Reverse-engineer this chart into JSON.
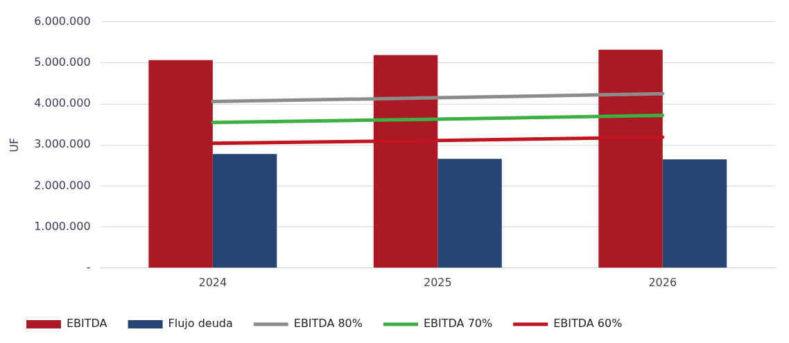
{
  "chart_data": {
    "type": "bar",
    "ylabel": "UF",
    "categories": [
      "2024",
      "2025",
      "2026"
    ],
    "series": [
      {
        "name": "EBITDA",
        "color": "#ab1a24",
        "values": [
          5070000,
          5190000,
          5320000
        ]
      },
      {
        "name": "Flujo deuda",
        "color": "#264573",
        "values": [
          2780000,
          2660000,
          2650000
        ]
      },
      {
        "name": "EBITDA 80%",
        "type": "line",
        "color": "#8c8c8c",
        "values": [
          4060000,
          4150000,
          4250000
        ]
      },
      {
        "name": "EBITDA 70%",
        "type": "line",
        "color": "#3cb043",
        "values": [
          3550000,
          3630000,
          3720000
        ]
      },
      {
        "name": "EBITDA 60%",
        "type": "line",
        "color": "#c0141e",
        "values": [
          3040000,
          3110000,
          3190000
        ]
      }
    ],
    "ylim": [
      0,
      6000000
    ],
    "yticks": [
      {
        "value": 0,
        "label": "-"
      },
      {
        "value": 1000000,
        "label": "1.000.000"
      },
      {
        "value": 2000000,
        "label": "2.000.000"
      },
      {
        "value": 3000000,
        "label": "3.000.000"
      },
      {
        "value": 4000000,
        "label": "4.000.000"
      },
      {
        "value": 5000000,
        "label": "5.000.000"
      },
      {
        "value": 6000000,
        "label": "6.000.000"
      }
    ],
    "grid": "y",
    "legend": "bottom",
    "marker": "none",
    "line_style": "solid"
  }
}
